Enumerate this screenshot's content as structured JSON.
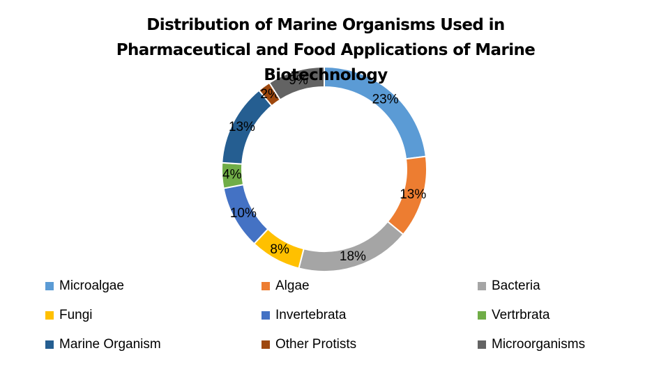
{
  "chart_data": {
    "type": "donut",
    "title": "Distribution of Marine Organisms Used in Pharmaceutical and Food Applications of Marine Biotechnology",
    "categories": [
      "Microalgae",
      "Algae",
      "Bacteria",
      "Fungi",
      "Invertebrata",
      "Vertrbrata",
      "Marine Organism",
      "Other Protists",
      "Microorganisms"
    ],
    "values": [
      23,
      13,
      18,
      8,
      10,
      4,
      13,
      2,
      9
    ],
    "value_labels": [
      "23%",
      "13%",
      "18%",
      "8%",
      "10%",
      "4%",
      "13%",
      "2%",
      "9%"
    ],
    "colors": [
      "#5b9bd5",
      "#ed7d31",
      "#a5a5a5",
      "#ffc000",
      "#4472c4",
      "#70ad47",
      "#255e91",
      "#9e480e",
      "#636363"
    ],
    "legend": "bottom"
  }
}
